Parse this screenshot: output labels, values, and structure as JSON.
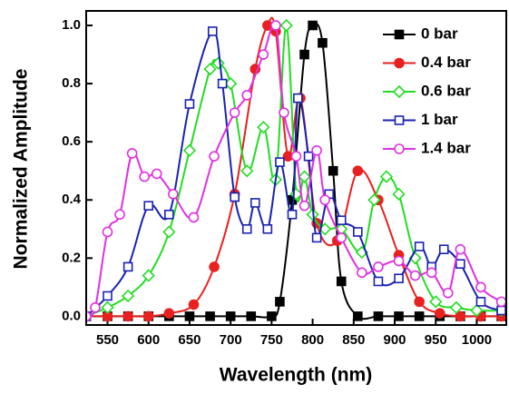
{
  "chart_data": {
    "type": "line",
    "xlabel": "Wavelength (nm)",
    "ylabel": "Normalized Amplitude",
    "xlim": [
      524,
      1036
    ],
    "ylim": [
      -0.03,
      1.05
    ],
    "xticks": [
      550,
      600,
      650,
      700,
      750,
      800,
      850,
      900,
      950,
      1000
    ],
    "yticks": [
      {
        "value": 0,
        "label": "0.0"
      },
      0.2,
      0.4,
      0.6,
      0.8,
      {
        "value": 1,
        "label": "1.0"
      }
    ],
    "legend": "top-right",
    "series": [
      {
        "name": "0 bar",
        "color": "#000000",
        "marker": "square-filled",
        "x": [
          524,
          550,
          575,
          600,
          625,
          650,
          675,
          700,
          725,
          750,
          760,
          775,
          790,
          800,
          812,
          825,
          835,
          855,
          880,
          905,
          930,
          955,
          980,
          1005,
          1030
        ],
        "values": [
          0,
          0,
          0,
          0,
          0,
          0,
          0,
          0,
          0,
          0,
          0.05,
          0.4,
          0.9,
          1.0,
          0.94,
          0.5,
          0.12,
          0,
          0,
          0,
          0,
          0,
          0,
          0,
          0
        ]
      },
      {
        "name": "0.4 bar",
        "color": "#e8201f",
        "marker": "circle-filled",
        "x": [
          524,
          550,
          575,
          600,
          625,
          655,
          680,
          705,
          730,
          745,
          755,
          770,
          785,
          805,
          830,
          855,
          880,
          905,
          930,
          955,
          980,
          1005,
          1030
        ],
        "values": [
          0,
          0,
          0,
          0,
          0.01,
          0.04,
          0.17,
          0.42,
          0.85,
          1.0,
          0.98,
          0.55,
          0.75,
          0.32,
          0.26,
          0.5,
          0.4,
          0.21,
          0.05,
          0.01,
          0,
          0,
          0
        ]
      },
      {
        "name": "0.6 bar",
        "color": "#22dd22",
        "marker": "diamond-open",
        "x": [
          524,
          550,
          575,
          600,
          625,
          650,
          675,
          685,
          700,
          720,
          740,
          755,
          768,
          780,
          790,
          800,
          815,
          835,
          860,
          875,
          890,
          905,
          925,
          950,
          975,
          1000,
          1030
        ],
        "values": [
          0,
          0.03,
          0.07,
          0.14,
          0.29,
          0.57,
          0.85,
          0.87,
          0.8,
          0.5,
          0.65,
          0.47,
          1.0,
          0.42,
          0.48,
          0.35,
          0.3,
          0.3,
          0.22,
          0.4,
          0.48,
          0.42,
          0.2,
          0.05,
          0.03,
          0.02,
          0.02
        ]
      },
      {
        "name": "1 bar",
        "color": "#1a22b0",
        "marker": "square-open",
        "x": [
          524,
          550,
          575,
          600,
          625,
          650,
          678,
          690,
          705,
          720,
          730,
          745,
          760,
          775,
          782,
          795,
          805,
          820,
          835,
          855,
          880,
          905,
          930,
          945,
          960,
          980,
          1005,
          1030
        ],
        "values": [
          0,
          0.07,
          0.17,
          0.38,
          0.35,
          0.73,
          0.98,
          0.8,
          0.41,
          0.3,
          0.39,
          0.3,
          0.53,
          0.35,
          0.75,
          0.55,
          0.27,
          0.42,
          0.33,
          0.29,
          0.12,
          0.13,
          0.24,
          0.17,
          0.23,
          0.18,
          0.05,
          0.02
        ]
      },
      {
        "name": "1.4 bar",
        "color": "#e030e0",
        "marker": "circle-open",
        "x": [
          524,
          535,
          550,
          565,
          580,
          595,
          610,
          630,
          655,
          680,
          705,
          720,
          740,
          755,
          765,
          780,
          790,
          805,
          815,
          835,
          860,
          880,
          905,
          925,
          945,
          965,
          980,
          1005,
          1030
        ],
        "values": [
          0,
          0.03,
          0.29,
          0.35,
          0.56,
          0.48,
          0.49,
          0.42,
          0.34,
          0.55,
          0.7,
          0.76,
          0.9,
          1.0,
          0.7,
          0.55,
          0.38,
          0.57,
          0.4,
          0.27,
          0.15,
          0.17,
          0.19,
          0.14,
          0.15,
          0.08,
          0.23,
          0.1,
          0.05
        ]
      }
    ]
  }
}
